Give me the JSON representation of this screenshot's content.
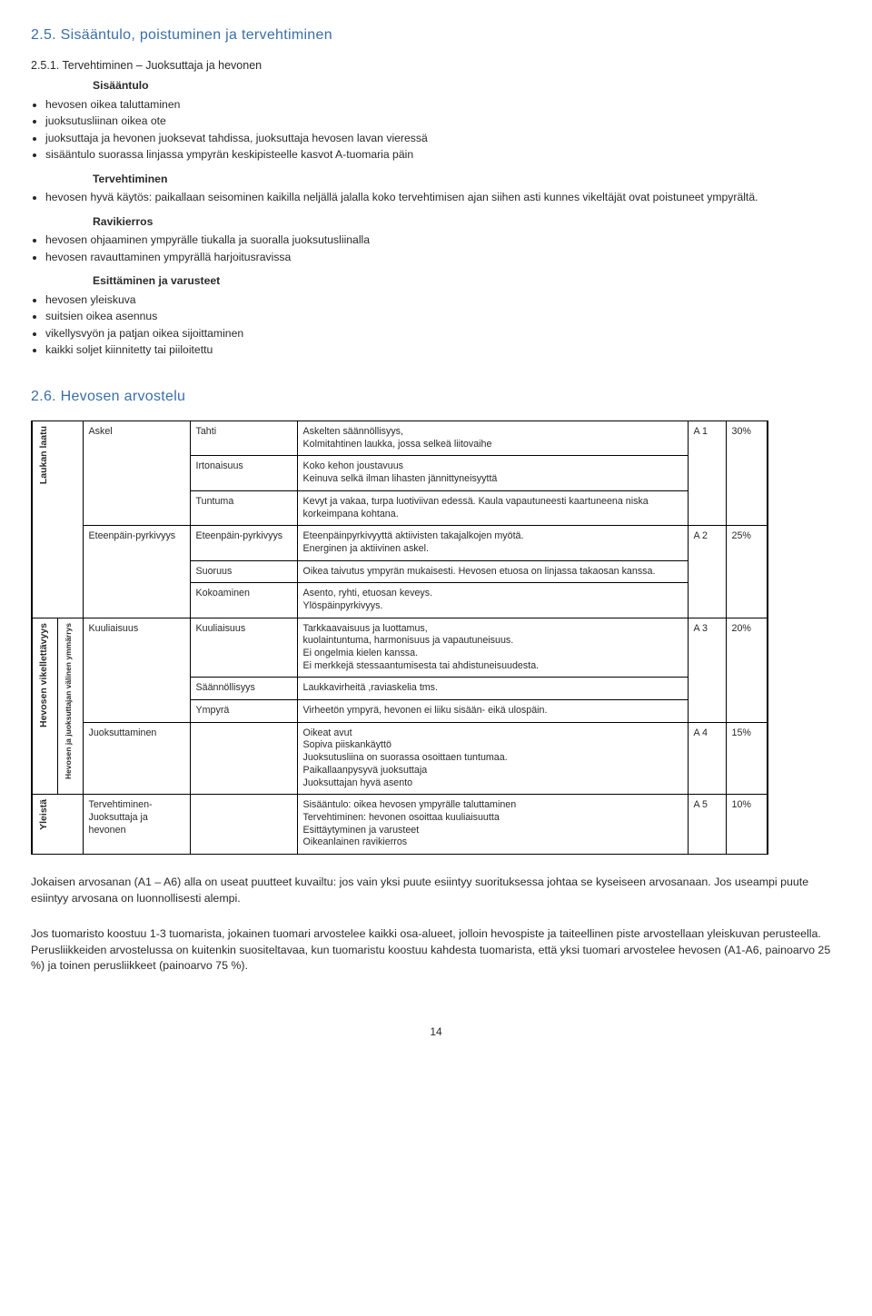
{
  "section25": {
    "title": "2.5.  Sisääntulo, poistuminen ja tervehtiminen",
    "subnum": "2.5.1. Tervehtiminen – Juoksuttaja ja hevonen",
    "h1": "Sisääntulo",
    "b1": [
      "hevosen oikea taluttaminen",
      "juoksutusliinan oikea ote",
      "juoksuttaja ja hevonen juoksevat tahdissa, juoksuttaja hevosen lavan vieressä",
      "sisääntulo suorassa linjassa ympyrän keskipisteelle kasvot A-tuomaria päin"
    ],
    "h2": "Tervehtiminen",
    "b2": [
      "hevosen hyvä käytös: paikallaan seisominen kaikilla neljällä jalalla koko tervehtimisen ajan siihen asti kunnes vikeltäjät ovat poistuneet ympyrältä."
    ],
    "h3": "Ravikierros",
    "b3": [
      "hevosen ohjaaminen ympyrälle tiukalla ja suoralla juoksutusliinalla",
      "hevosen ravauttaminen ympyrällä harjoitusravissa"
    ],
    "h4": "Esittäminen ja varusteet",
    "b4": [
      "hevosen yleiskuva",
      "suitsien oikea asennus",
      "vikellysvyön ja patjan oikea sijoittaminen",
      "kaikki soljet kiinnitetty tai piiloitettu"
    ]
  },
  "section26": {
    "title": "2.6.  Hevosen arvostelu",
    "vlabels": {
      "laukka": "Laukan laatu",
      "vikel": "Hevosen vikellettävyys",
      "sub": "Hevosen ja juoksuttajan välinen ymmärrys",
      "yleista": "Yleistä"
    },
    "rows": {
      "askel": "Askel",
      "eteenpain": "Eteenpäin-pyrkivyys",
      "kuuliaisuus": "Kuuliaisuus",
      "juoksuttaminen": "Juoksuttaminen",
      "tervehtiminen": "Tervehtiminen- Juoksuttaja ja hevonen"
    },
    "col3": {
      "tahti": "Tahti",
      "irtonaisuus": "Irtonaisuus",
      "tuntuma": "Tuntuma",
      "etp": "Eteenpäin-pyrkivyys",
      "suoruus": "Suoruus",
      "kokoaminen": "Kokoaminen",
      "kuuliaisuus2": "Kuuliaisuus",
      "saann": "Säännöllisyys",
      "ympyra": "Ympyrä"
    },
    "desc": {
      "tahti": "Askelten säännöllisyys,\nKolmitahtinen laukka, jossa selkeä liitovaihe",
      "irtonaisuus": "Koko kehon joustavuus\nKeinuva selkä ilman lihasten jännittyneisyyttä",
      "tuntuma": "Kevyt ja vakaa, turpa luotiviivan edessä. Kaula vapautuneesti kaartuneena niska korkeimpana kohtana.",
      "etp": "Eteenpäinpyrkivyyttä aktiivisten takajalkojen myötä.\nEnerginen ja aktiivinen askel.",
      "suoruus": "Oikea taivutus ympyrän mukaisesti. Hevosen etuosa on linjassa takaosan kanssa.",
      "kokoaminen": "Asento, ryhti, etuosan keveys.\nYlöspäinpyrkivyys.",
      "kuuliaisuus2": "Tarkkaavaisuus ja luottamus,\nkuolaintuntuma, harmonisuus ja vapautuneisuus.\nEi ongelmia kielen kanssa.\nEi merkkejä stessaantumisesta tai ahdistuneisuudesta.",
      "saann": "Laukkavirheitä ,raviaskelia tms.",
      "ympyra": "Virheetön ympyrä, hevonen ei liiku sisään- eikä ulospäin.",
      "juoksuttaminen": "Oikeat avut\nSopiva piiskankäyttö\nJuoksutusliina on suorassa osoittaen tuntumaa.\nPaikallaanpysyvä juoksuttaja\nJuoksuttajan hyvä asento",
      "tervehtiminen": "Sisääntulo: oikea hevosen ympyrälle taluttaminen\nTervehtiminen: hevonen osoittaa kuuliaisuutta\nEsittäytyminen ja varusteet\nOikeanlainen ravikierros"
    },
    "codes": {
      "a1": "A 1",
      "a2": "A 2",
      "a3": "A 3",
      "a4": "A 4",
      "a5": "A 5"
    },
    "pct": {
      "p1": "30%",
      "p2": "25%",
      "p3": "20%",
      "p4": "15%",
      "p5": "10%"
    }
  },
  "footer": {
    "p1": "Jokaisen arvosanan (A1 – A6) alla on useat puutteet kuvailtu: jos vain yksi puute esiintyy suorituksessa johtaa se kyseiseen arvosanaan. Jos useampi puute esiintyy arvosana on luonnollisesti alempi.",
    "p2": "Jos tuomaristo koostuu 1-3 tuomarista, jokainen tuomari arvostelee kaikki osa-alueet, jolloin hevospiste ja taiteellinen piste arvostellaan yleiskuvan perusteella. Perusliikkeiden arvostelussa on kuitenkin suositeltavaa, kun tuomaristu koostuu kahdesta tuomarista, että yksi tuomari arvostelee hevosen (A1-A6, painoarvo 25 %) ja toinen perusliikkeet (painoarvo 75 %).",
    "pagenum": "14"
  }
}
